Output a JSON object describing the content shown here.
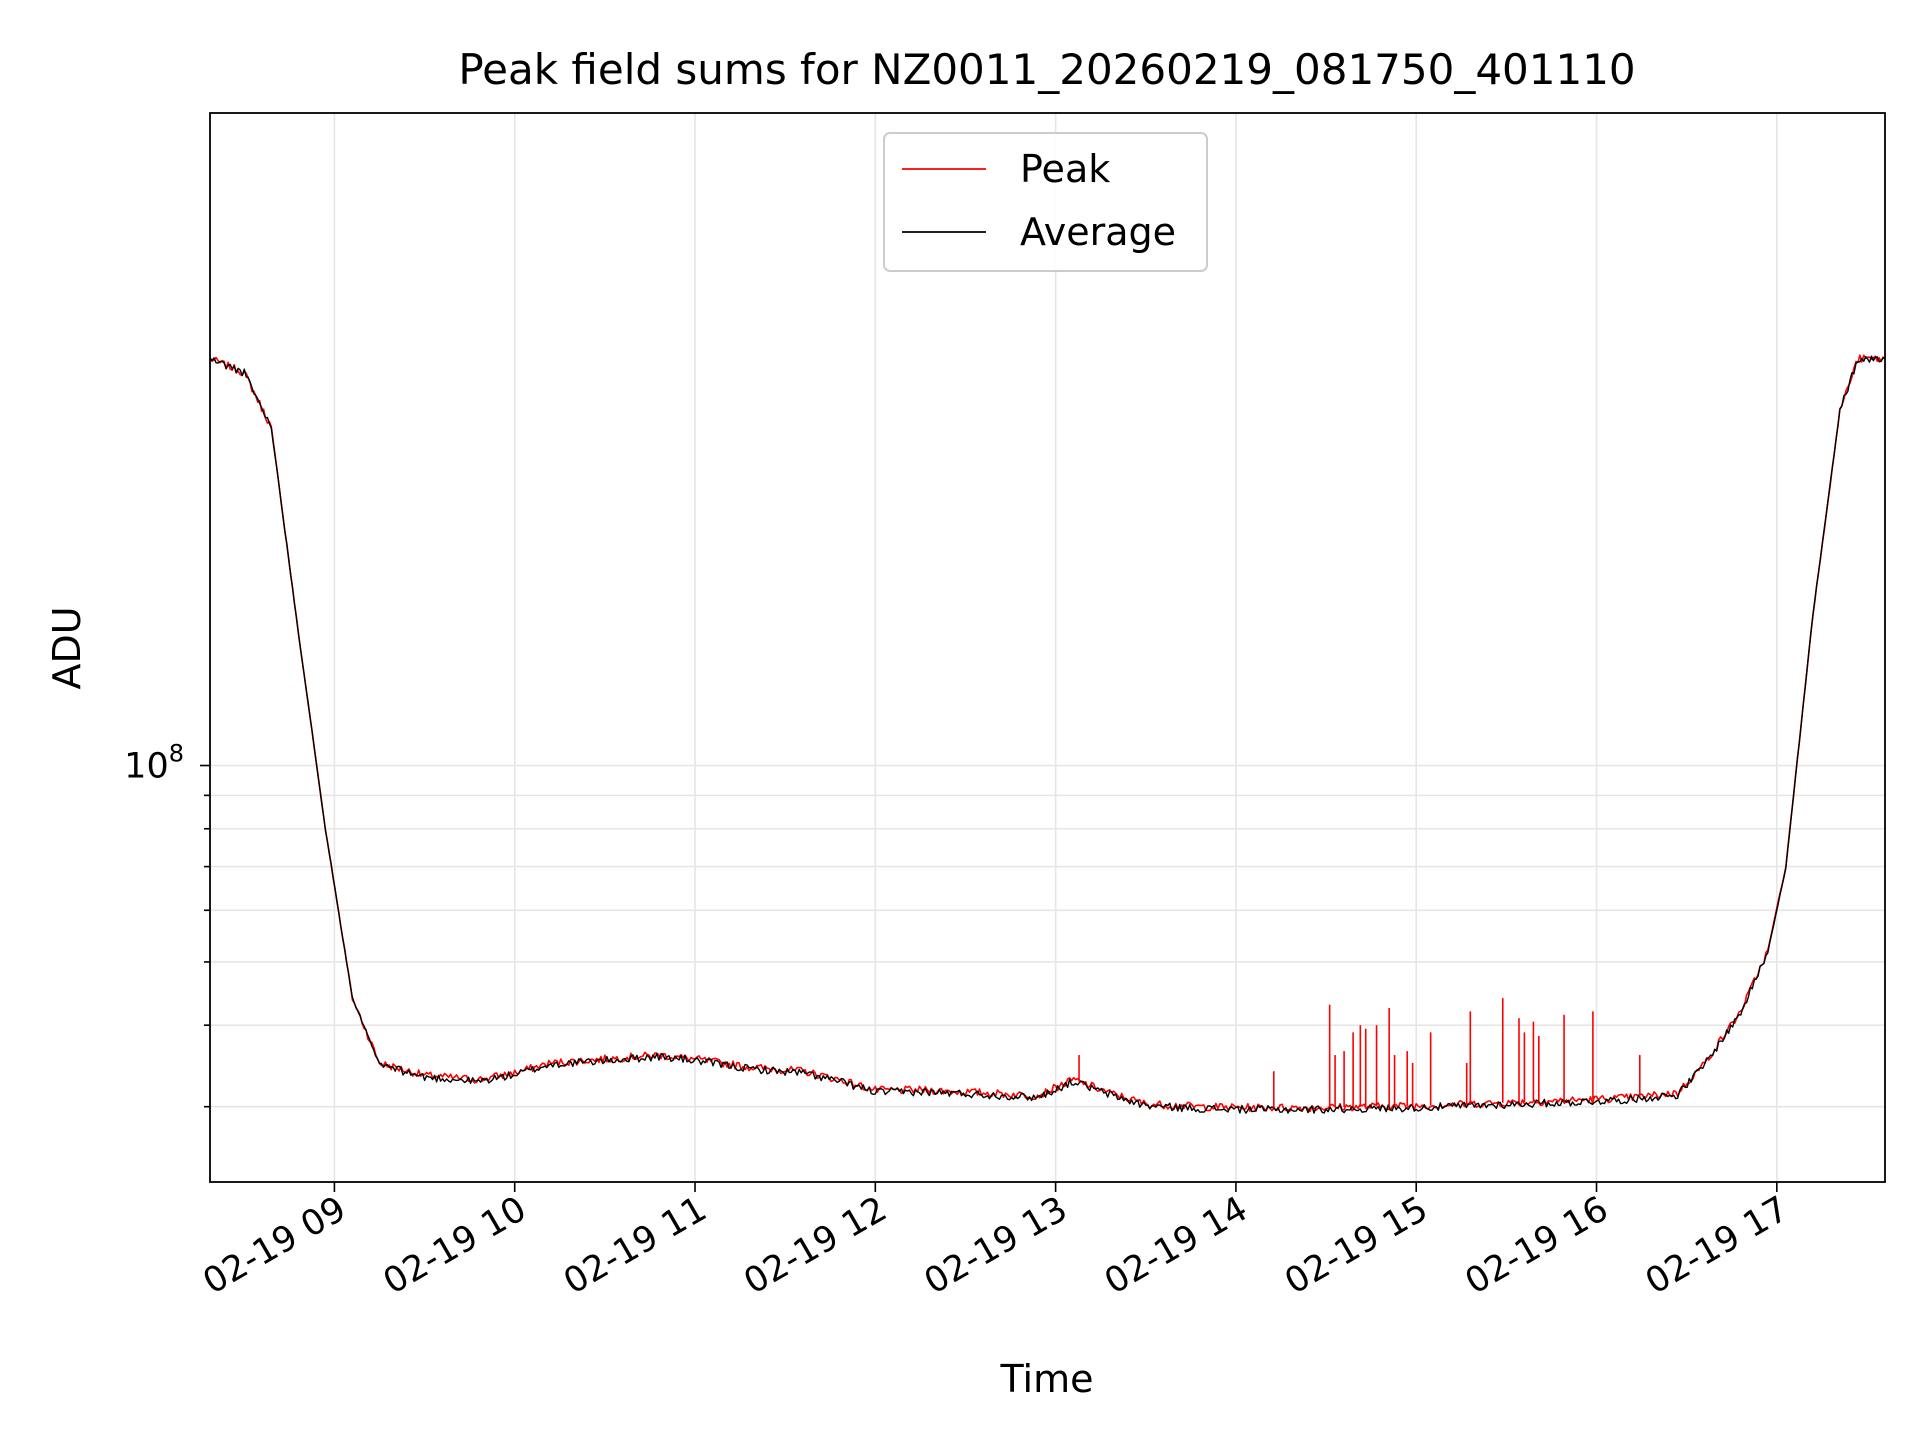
{
  "chart_data": {
    "type": "line",
    "title": "Peak field sums for NZ0011_20260219_081750_401110",
    "xlabel": "Time",
    "ylabel": "ADU",
    "x_unit": "hours since 2026-02-19 00:00",
    "xlim": [
      8.31,
      17.6
    ],
    "ylim": [
      23000000,
      1000000000
    ],
    "yscale": "log",
    "x_ticks": [
      {
        "value": 9,
        "label": "02-19 09"
      },
      {
        "value": 10,
        "label": "02-19 10"
      },
      {
        "value": 11,
        "label": "02-19 11"
      },
      {
        "value": 12,
        "label": "02-19 12"
      },
      {
        "value": 13,
        "label": "02-19 13"
      },
      {
        "value": 14,
        "label": "02-19 14"
      },
      {
        "value": 15,
        "label": "02-19 15"
      },
      {
        "value": 16,
        "label": "02-19 16"
      },
      {
        "value": 17,
        "label": "02-19 17"
      }
    ],
    "y_major_ticks": [
      {
        "value": 100000000,
        "base": "10",
        "exponent": "8"
      }
    ],
    "y_minor_ticks": [
      30000000,
      40000000,
      50000000,
      60000000,
      70000000,
      80000000,
      90000000
    ],
    "grid": true,
    "legend": {
      "position": "top-center",
      "entries": [
        "Peak",
        "Average"
      ]
    },
    "series": [
      {
        "name": "Peak",
        "color": "#ff0000",
        "x": [
          8.31,
          8.5,
          8.65,
          8.8,
          8.95,
          9.1,
          9.25,
          9.5,
          9.8,
          10.0,
          10.2,
          10.5,
          10.8,
          11.0,
          11.3,
          11.6,
          11.8,
          12.0,
          12.3,
          12.6,
          12.9,
          13.1,
          13.3,
          13.5,
          13.8,
          14.1,
          14.4,
          14.7,
          15.0,
          15.3,
          15.6,
          15.9,
          16.2,
          16.45,
          16.6,
          16.8,
          16.95,
          17.05,
          17.2,
          17.35,
          17.45,
          17.6
        ],
        "y": [
          420000000,
          400000000,
          330000000,
          160000000,
          80000000,
          44000000,
          35000000,
          33500000,
          33000000,
          33800000,
          35000000,
          35500000,
          36000000,
          35500000,
          34500000,
          34000000,
          33000000,
          31800000,
          31800000,
          31500000,
          31200000,
          33000000,
          31500000,
          30300000,
          30000000,
          29900000,
          29900000,
          30000000,
          30100000,
          30300000,
          30500000,
          30700000,
          31000000,
          31500000,
          35000000,
          42000000,
          52000000,
          70000000,
          170000000,
          350000000,
          420000000,
          420000000
        ],
        "spikes": [
          {
            "x": 13.13,
            "y": 36000000
          },
          {
            "x": 14.21,
            "y": 34000000
          },
          {
            "x": 14.52,
            "y": 43000000
          },
          {
            "x": 14.55,
            "y": 36000000
          },
          {
            "x": 14.6,
            "y": 36500000
          },
          {
            "x": 14.65,
            "y": 39000000
          },
          {
            "x": 14.69,
            "y": 40000000
          },
          {
            "x": 14.72,
            "y": 39500000
          },
          {
            "x": 14.78,
            "y": 40000000
          },
          {
            "x": 14.85,
            "y": 42500000
          },
          {
            "x": 14.88,
            "y": 36000000
          },
          {
            "x": 14.95,
            "y": 36500000
          },
          {
            "x": 14.98,
            "y": 35000000
          },
          {
            "x": 15.08,
            "y": 39000000
          },
          {
            "x": 15.28,
            "y": 35000000
          },
          {
            "x": 15.3,
            "y": 42000000
          },
          {
            "x": 15.48,
            "y": 44000000
          },
          {
            "x": 15.57,
            "y": 41000000
          },
          {
            "x": 15.6,
            "y": 39000000
          },
          {
            "x": 15.65,
            "y": 40500000
          },
          {
            "x": 15.68,
            "y": 38500000
          },
          {
            "x": 15.82,
            "y": 41500000
          },
          {
            "x": 15.98,
            "y": 42000000
          },
          {
            "x": 16.24,
            "y": 36000000
          }
        ]
      },
      {
        "name": "Average",
        "color": "#000000",
        "x": [
          8.31,
          8.5,
          8.65,
          8.8,
          8.95,
          9.1,
          9.25,
          9.5,
          9.8,
          10.0,
          10.2,
          10.5,
          10.8,
          11.0,
          11.3,
          11.6,
          11.8,
          12.0,
          12.3,
          12.6,
          12.9,
          13.1,
          13.3,
          13.5,
          13.8,
          14.1,
          14.4,
          14.7,
          15.0,
          15.3,
          15.6,
          15.9,
          16.2,
          16.45,
          16.6,
          16.8,
          16.95,
          17.05,
          17.2,
          17.35,
          17.45,
          17.6
        ],
        "y": [
          420000000,
          400000000,
          330000000,
          160000000,
          80000000,
          44000000,
          34800000,
          33300000,
          32800000,
          33600000,
          34800000,
          35300000,
          35800000,
          35300000,
          34300000,
          33800000,
          32800000,
          31600000,
          31600000,
          31300000,
          31000000,
          32800000,
          31300000,
          30100000,
          29800000,
          29700000,
          29700000,
          29800000,
          29900000,
          30100000,
          30300000,
          30500000,
          30800000,
          31300000,
          34800000,
          41800000,
          51800000,
          69800000,
          170000000,
          350000000,
          420000000,
          420000000
        ]
      }
    ]
  }
}
